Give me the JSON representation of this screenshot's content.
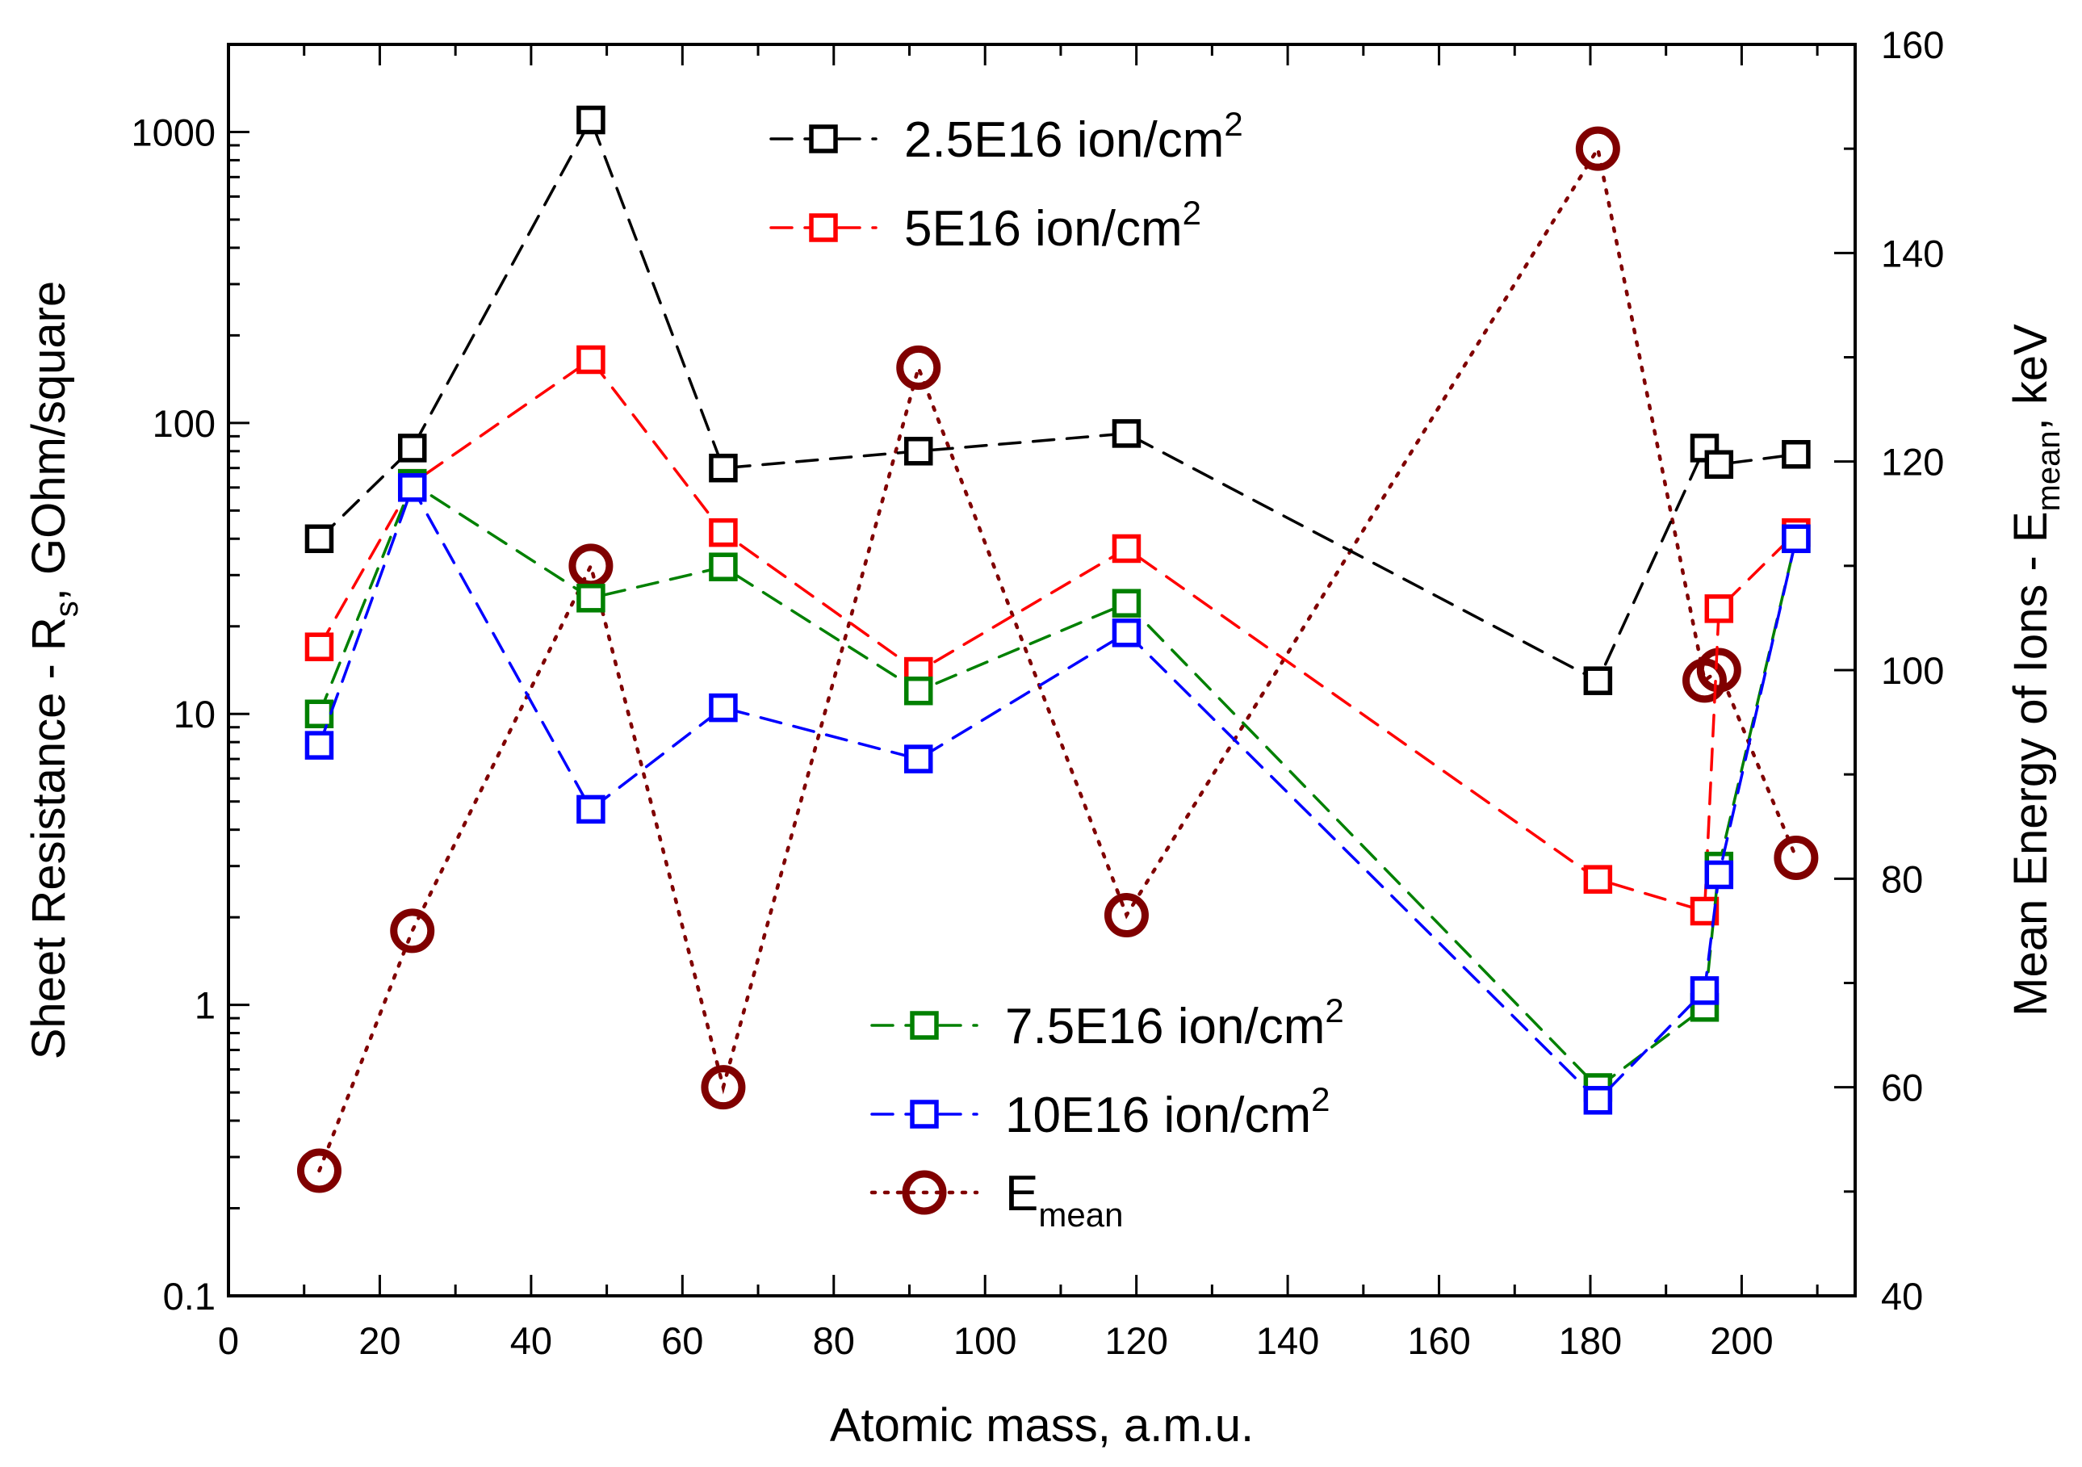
{
  "chart_data": {
    "type": "line",
    "title": "",
    "xlabel": "Atomic mass, a.m.u.",
    "ylabel_left": {
      "main": "Sheet Resistance - R",
      "sub": "s",
      "rest": ",  GOhm/square"
    },
    "ylabel_right": {
      "main": "Mean Energy of Ions - E",
      "sub": "mean",
      "rest": ", keV"
    },
    "xlim": [
      0,
      215
    ],
    "ylim_left": [
      0.1,
      2000
    ],
    "yscale_left": "log",
    "ylim_right": [
      40,
      160
    ],
    "x_ticks": [
      "0",
      "20",
      "40",
      "60",
      "80",
      "100",
      "120",
      "140",
      "160",
      "180",
      "200"
    ],
    "y_left_ticks": [
      "0.1",
      "1",
      "10",
      "100",
      "1000"
    ],
    "y_right_ticks": [
      "40",
      "60",
      "80",
      "100",
      "120",
      "140",
      "160"
    ],
    "legend_placement": "top-center and bottom-center",
    "series": [
      {
        "name": "2.5E16 ion/cm",
        "sup": "2",
        "color": "#000000",
        "marker": "square",
        "line": "dashed",
        "axis": "left",
        "x": [
          12,
          24.3,
          47.9,
          65.4,
          91.2,
          118.7,
          181,
          195.1,
          197,
          207.2
        ],
        "values": [
          40,
          82,
          1100,
          70,
          80,
          92,
          13,
          82,
          72,
          78
        ]
      },
      {
        "name": "5E16 ion/cm",
        "sup": "2",
        "color": "#ff0000",
        "marker": "square",
        "line": "dashed",
        "axis": "left",
        "x": [
          12,
          24.3,
          47.9,
          65.4,
          91.2,
          118.7,
          181,
          195.1,
          197,
          207.2
        ],
        "values": [
          17,
          62,
          165,
          42,
          14,
          37,
          2.7,
          2.1,
          23,
          42
        ]
      },
      {
        "name": "7.5E16 ion/cm",
        "sup": "2",
        "color": "#008000",
        "marker": "square",
        "line": "dashed",
        "axis": "left",
        "x": [
          12,
          24.3,
          47.9,
          65.4,
          91.2,
          118.7,
          181,
          195.1,
          197,
          207.2
        ],
        "values": [
          10,
          62,
          25,
          32,
          12,
          24,
          0.52,
          0.98,
          3,
          40
        ]
      },
      {
        "name": "10E16 ion/cm",
        "sup": "2",
        "color": "#0000ff",
        "marker": "square",
        "line": "dashed",
        "axis": "left",
        "x": [
          12,
          24.3,
          47.9,
          65.4,
          91.2,
          118.7,
          181,
          195.1,
          197,
          207.2
        ],
        "values": [
          7.8,
          60,
          4.7,
          10.5,
          7,
          19,
          0.47,
          1.12,
          2.8,
          40
        ]
      },
      {
        "name": "E",
        "sub": "mean",
        "color": "#800000",
        "marker": "circle",
        "line": "dotted",
        "axis": "right",
        "x": [
          12,
          24.3,
          47.9,
          65.4,
          91.2,
          118.7,
          181,
          195.1,
          197,
          207.2
        ],
        "values": [
          52,
          75,
          110,
          60,
          129,
          76.5,
          150,
          99,
          100,
          82
        ]
      }
    ]
  }
}
